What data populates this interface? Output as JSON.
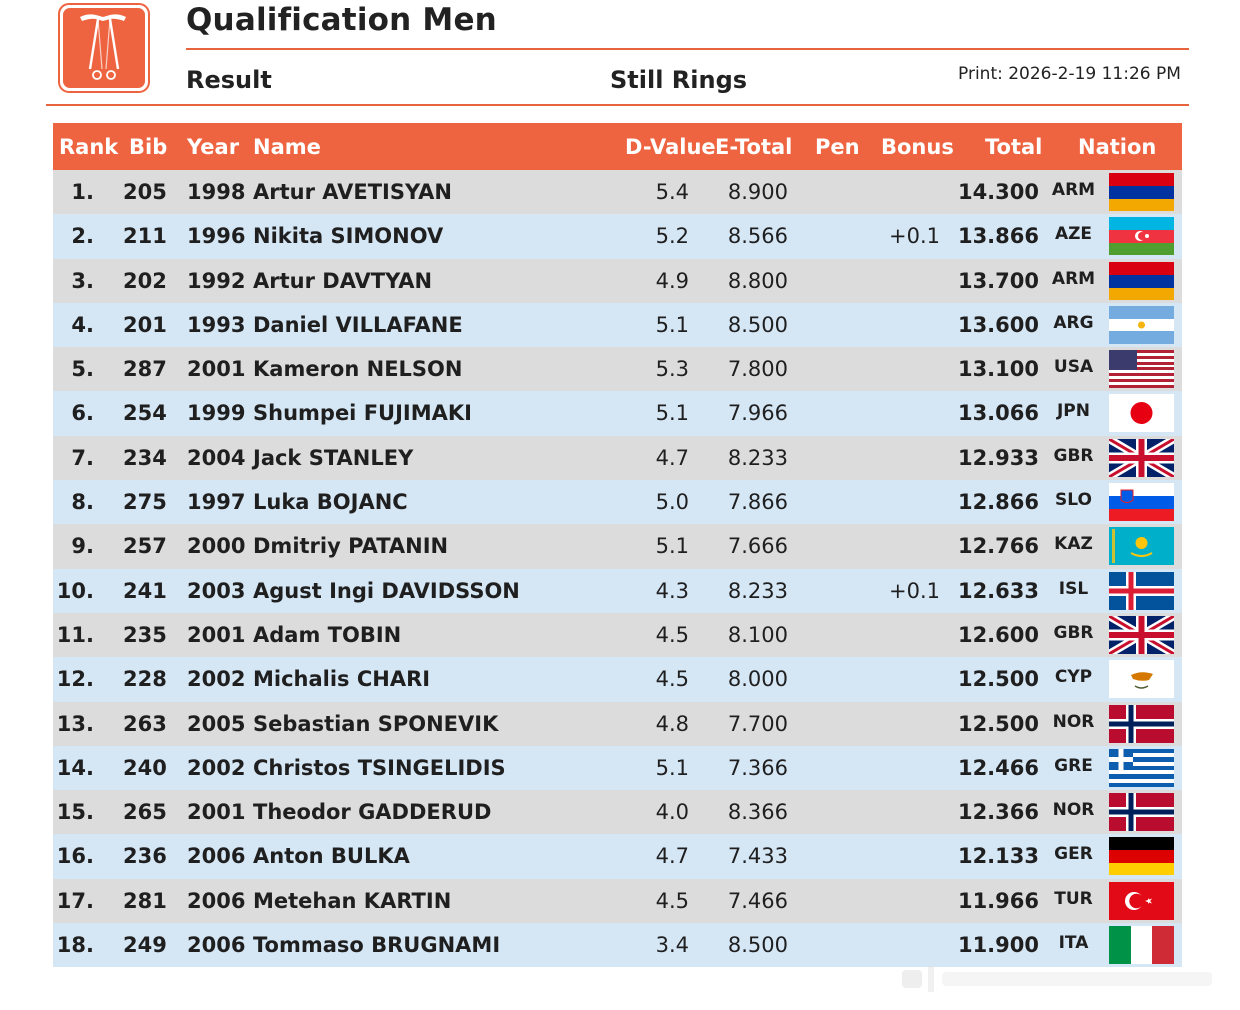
{
  "header": {
    "title": "Qualification Men",
    "subtitle_left": "Result",
    "subtitle_center": "Still Rings",
    "print": "Print: 2026-2-19 11:26 PM"
  },
  "colors": {
    "accent": "#ee6440",
    "row_odd": "#dcdcdc",
    "row_even": "#d5e6f5"
  },
  "logo_icon": "still-rings-logo-icon",
  "columns": [
    "Rank",
    "Bib",
    "Year",
    "Name",
    "D-Value",
    "E-Total",
    "Pen",
    "Bonus",
    "Total",
    "Nation"
  ],
  "rows": [
    {
      "rank": "1.",
      "bib": "205",
      "year": "1998",
      "name": "Artur AVETISYAN",
      "d": "5.4",
      "e": "8.900",
      "pen": "",
      "bonus": "",
      "total": "14.300",
      "nation": "ARM"
    },
    {
      "rank": "2.",
      "bib": "211",
      "year": "1996",
      "name": "Nikita SIMONOV",
      "d": "5.2",
      "e": "8.566",
      "pen": "",
      "bonus": "+0.1",
      "total": "13.866",
      "nation": "AZE"
    },
    {
      "rank": "3.",
      "bib": "202",
      "year": "1992",
      "name": "Artur DAVTYAN",
      "d": "4.9",
      "e": "8.800",
      "pen": "",
      "bonus": "",
      "total": "13.700",
      "nation": "ARM"
    },
    {
      "rank": "4.",
      "bib": "201",
      "year": "1993",
      "name": "Daniel VILLAFANE",
      "d": "5.1",
      "e": "8.500",
      "pen": "",
      "bonus": "",
      "total": "13.600",
      "nation": "ARG"
    },
    {
      "rank": "5.",
      "bib": "287",
      "year": "2001",
      "name": "Kameron NELSON",
      "d": "5.3",
      "e": "7.800",
      "pen": "",
      "bonus": "",
      "total": "13.100",
      "nation": "USA"
    },
    {
      "rank": "6.",
      "bib": "254",
      "year": "1999",
      "name": "Shumpei FUJIMAKI",
      "d": "5.1",
      "e": "7.966",
      "pen": "",
      "bonus": "",
      "total": "13.066",
      "nation": "JPN"
    },
    {
      "rank": "7.",
      "bib": "234",
      "year": "2004",
      "name": "Jack STANLEY",
      "d": "4.7",
      "e": "8.233",
      "pen": "",
      "bonus": "",
      "total": "12.933",
      "nation": "GBR"
    },
    {
      "rank": "8.",
      "bib": "275",
      "year": "1997",
      "name": "Luka BOJANC",
      "d": "5.0",
      "e": "7.866",
      "pen": "",
      "bonus": "",
      "total": "12.866",
      "nation": "SLO"
    },
    {
      "rank": "9.",
      "bib": "257",
      "year": "2000",
      "name": "Dmitriy PATANIN",
      "d": "5.1",
      "e": "7.666",
      "pen": "",
      "bonus": "",
      "total": "12.766",
      "nation": "KAZ"
    },
    {
      "rank": "10.",
      "bib": "241",
      "year": "2003",
      "name": "Agust Ingi DAVIDSSON",
      "d": "4.3",
      "e": "8.233",
      "pen": "",
      "bonus": "+0.1",
      "total": "12.633",
      "nation": "ISL"
    },
    {
      "rank": "11.",
      "bib": "235",
      "year": "2001",
      "name": "Adam TOBIN",
      "d": "4.5",
      "e": "8.100",
      "pen": "",
      "bonus": "",
      "total": "12.600",
      "nation": "GBR"
    },
    {
      "rank": "12.",
      "bib": "228",
      "year": "2002",
      "name": "Michalis CHARI",
      "d": "4.5",
      "e": "8.000",
      "pen": "",
      "bonus": "",
      "total": "12.500",
      "nation": "CYP"
    },
    {
      "rank": "13.",
      "bib": "263",
      "year": "2005",
      "name": "Sebastian SPONEVIK",
      "d": "4.8",
      "e": "7.700",
      "pen": "",
      "bonus": "",
      "total": "12.500",
      "nation": "NOR"
    },
    {
      "rank": "14.",
      "bib": "240",
      "year": "2002",
      "name": "Christos TSINGELIDIS",
      "d": "5.1",
      "e": "7.366",
      "pen": "",
      "bonus": "",
      "total": "12.466",
      "nation": "GRE"
    },
    {
      "rank": "15.",
      "bib": "265",
      "year": "2001",
      "name": "Theodor GADDERUD",
      "d": "4.0",
      "e": "8.366",
      "pen": "",
      "bonus": "",
      "total": "12.366",
      "nation": "NOR"
    },
    {
      "rank": "16.",
      "bib": "236",
      "year": "2006",
      "name": "Anton BULKA",
      "d": "4.7",
      "e": "7.433",
      "pen": "",
      "bonus": "",
      "total": "12.133",
      "nation": "GER"
    },
    {
      "rank": "17.",
      "bib": "281",
      "year": "2006",
      "name": "Metehan KARTIN",
      "d": "4.5",
      "e": "7.466",
      "pen": "",
      "bonus": "",
      "total": "11.966",
      "nation": "TUR"
    },
    {
      "rank": "18.",
      "bib": "249",
      "year": "2006",
      "name": "Tommaso BRUGNAMI",
      "d": "3.4",
      "e": "8.500",
      "pen": "",
      "bonus": "",
      "total": "11.900",
      "nation": "ITA"
    }
  ]
}
